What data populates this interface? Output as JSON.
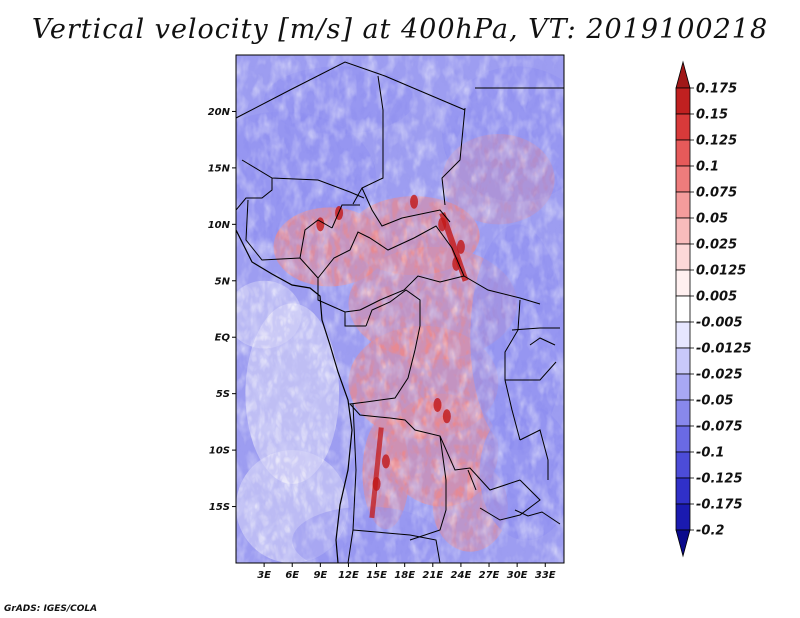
{
  "title": "Vertical velocity [m/s] at 400hPa, VT: 2019100218",
  "credit": "GrADS: IGES/COLA",
  "map": {
    "lat_labels": [
      "20N",
      "15N",
      "10N",
      "5N",
      "EQ",
      "5S",
      "10S",
      "15S"
    ],
    "lat_values": [
      20,
      15,
      10,
      5,
      0,
      -5,
      -10,
      -15
    ],
    "lon_labels": [
      "3E",
      "6E",
      "9E",
      "12E",
      "15E",
      "18E",
      "21E",
      "24E",
      "27E",
      "30E",
      "33E"
    ],
    "lon_values": [
      3,
      6,
      9,
      12,
      15,
      18,
      21,
      24,
      27,
      30,
      33
    ],
    "lon_range": [
      0,
      35
    ],
    "lat_range": [
      -20,
      25
    ],
    "field_colors": {
      "strong_down": "#2b2bd0",
      "down": "#8e8ef0",
      "weak": "#f4f2fa",
      "up": "#f08888",
      "strong_up": "#c21818"
    }
  },
  "colorbar": {
    "levels": [
      "0.175",
      "0.15",
      "0.125",
      "0.1",
      "0.075",
      "0.05",
      "0.025",
      "0.0125",
      "0.005",
      "-0.005",
      "-0.0125",
      "-0.025",
      "-0.05",
      "-0.075",
      "-0.1",
      "-0.125",
      "-0.175",
      "-0.2"
    ],
    "colors": [
      "#a01818",
      "#c02020",
      "#d83a3a",
      "#e65a5a",
      "#ee7c7c",
      "#f49c9c",
      "#f8bcbc",
      "#fcd8d8",
      "#fff0f0",
      "#ffffff",
      "#e6e6ff",
      "#c8c8fa",
      "#a8a8f4",
      "#8888ec",
      "#6a6ae4",
      "#4c4cd8",
      "#3030c8",
      "#1a1ab0",
      "#0a0a8c"
    ]
  }
}
